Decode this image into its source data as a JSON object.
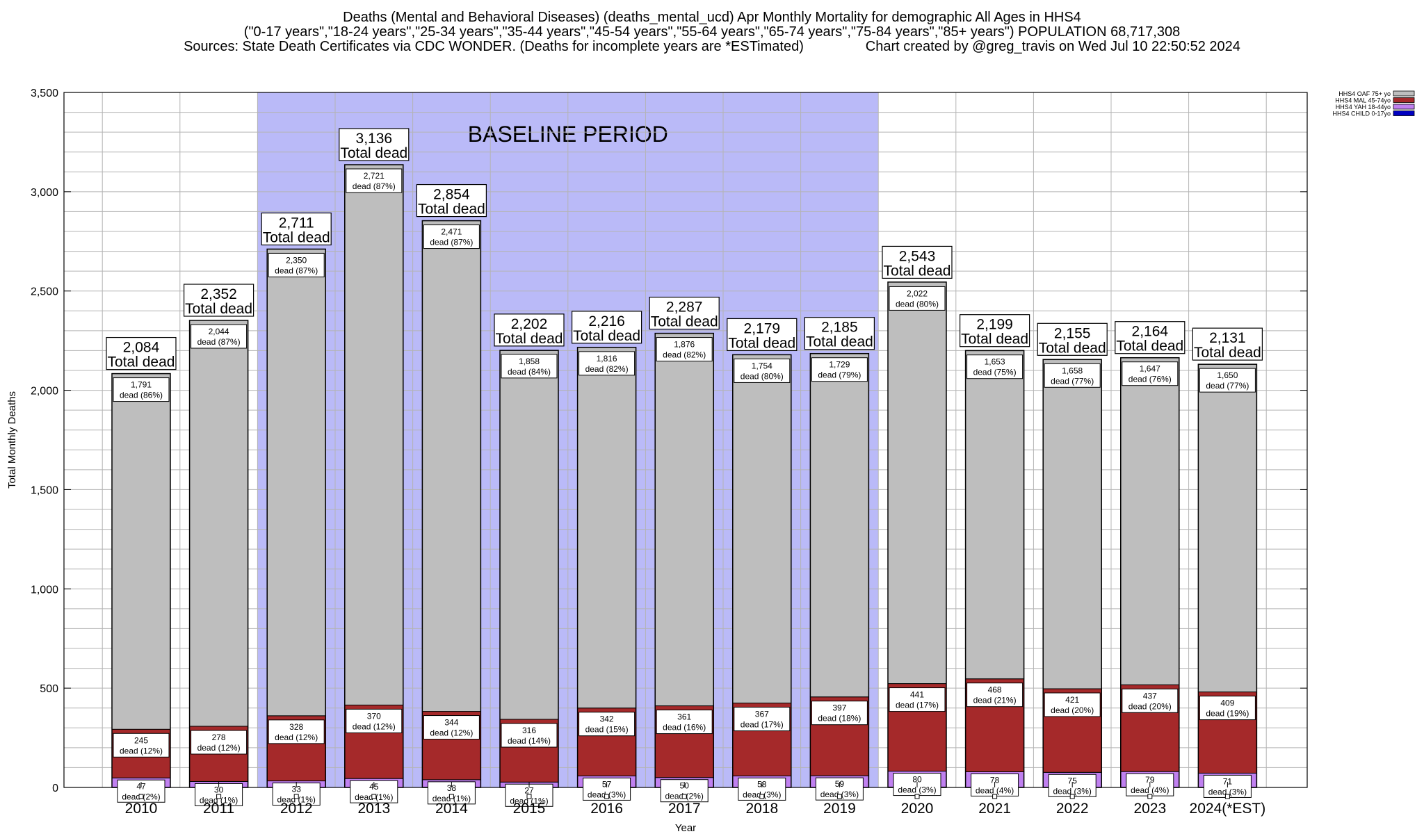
{
  "title": {
    "line1": "Deaths (Mental and Behavioral Diseases) (deaths_mental_ucd) Apr Monthly Mortality for demographic All Ages in HHS4",
    "line2": "(\"0-17 years\",\"18-24 years\",\"25-34 years\",\"35-44 years\",\"45-54 years\",\"55-64 years\",\"65-74 years\",\"75-84 years\",\"85+ years\") POPULATION 68,717,308",
    "line3": "Sources: State Death Certificates via CDC WONDER. (Deaths for incomplete years are *ESTimated)                Chart created by @greg_travis on Wed Jul 10 22:50:52 2024"
  },
  "colors": {
    "baseline_band": "#babaf8",
    "oaf": "#bebebe",
    "mal": "#a5292a",
    "yah": "#c080f0",
    "child": "#0000c0"
  },
  "chart_data": {
    "type": "bar",
    "stacked": true,
    "xlabel": "Year",
    "ylabel": "Total Monthly Deaths",
    "ylim": [
      0,
      3500
    ],
    "y_ticks": [
      0,
      500,
      1000,
      1500,
      2000,
      2500,
      3000,
      3500
    ],
    "y_tick_labels": [
      "0",
      "500",
      "1,000",
      "1,500",
      "2,000",
      "2,500",
      "3,000",
      "3,500"
    ],
    "grid": true,
    "legend_placement": "top-right",
    "baseline": {
      "label": "BASELINE PERIOD",
      "start": "2012",
      "end": "2019"
    },
    "categories": [
      "2010",
      "2011",
      "2012",
      "2013",
      "2014",
      "2015",
      "2016",
      "2017",
      "2018",
      "2019",
      "2020",
      "2021",
      "2022",
      "2023",
      "2024(*EST)"
    ],
    "totals": [
      2084,
      2352,
      2711,
      3136,
      2854,
      2202,
      2216,
      2287,
      2179,
      2185,
      2543,
      2199,
      2155,
      2164,
      2131
    ],
    "total_labels": [
      "2,084",
      "2,352",
      "2,711",
      "3,136",
      "2,854",
      "2,202",
      "2,216",
      "2,287",
      "2,179",
      "2,185",
      "2,543",
      "2,199",
      "2,155",
      "2,164",
      "2,131"
    ],
    "total_suffix": "Total dead",
    "series": [
      {
        "name": "HHS4 CHILD 0-17yo",
        "values": [
          1,
          0,
          0,
          0,
          1,
          0,
          1,
          0,
          0,
          0,
          2,
          1,
          1,
          1,
          1
        ],
        "labels": [
          "",
          "",
          "",
          "",
          "",
          "",
          "",
          "",
          "",
          "",
          "",
          "",
          "",
          "",
          ""
        ]
      },
      {
        "name": "HHS4 YAH 18-44yo",
        "values": [
          47,
          30,
          33,
          45,
          38,
          27,
          57,
          50,
          58,
          59,
          80,
          78,
          75,
          79,
          71
        ],
        "labels": [
          "47",
          "30",
          "33",
          "45",
          "38",
          "27",
          "57",
          "50",
          "58",
          "59",
          "80",
          "78",
          "75",
          "79",
          "71"
        ],
        "pct": [
          "(2%)",
          "(1%)",
          "(1%)",
          "(1%)",
          "(1%)",
          "(1%)",
          "(3%)",
          "(2%)",
          "(3%)",
          "(3%)",
          "(3%)",
          "(4%)",
          "(3%)",
          "(4%)",
          "(3%)"
        ]
      },
      {
        "name": "HHS4 MAL 45-74yo",
        "values": [
          245,
          278,
          328,
          370,
          344,
          316,
          342,
          361,
          367,
          397,
          441,
          468,
          421,
          437,
          409
        ],
        "labels": [
          "245",
          "278",
          "328",
          "370",
          "344",
          "316",
          "342",
          "361",
          "367",
          "397",
          "441",
          "468",
          "421",
          "437",
          "409"
        ],
        "pct": [
          "(12%)",
          "(12%)",
          "(12%)",
          "(12%)",
          "(12%)",
          "(14%)",
          "(15%)",
          "(16%)",
          "(17%)",
          "(18%)",
          "(17%)",
          "(21%)",
          "(20%)",
          "(20%)",
          "(19%)"
        ]
      },
      {
        "name": "HHS4 OAF 75+ yo",
        "values": [
          1791,
          2044,
          2350,
          2721,
          2471,
          1858,
          1816,
          1876,
          1754,
          1729,
          2022,
          1653,
          1658,
          1647,
          1650
        ],
        "labels": [
          "1,791",
          "2,044",
          "2,350",
          "2,721",
          "2,471",
          "1,858",
          "1,816",
          "1,876",
          "1,754",
          "1,729",
          "2,022",
          "1,653",
          "1,658",
          "1,647",
          "1,650"
        ],
        "pct": [
          "(86%)",
          "(87%)",
          "(87%)",
          "(87%)",
          "(87%)",
          "(84%)",
          "(82%)",
          "(82%)",
          "(80%)",
          "(79%)",
          "(80%)",
          "(75%)",
          "(77%)",
          "(76%)",
          "(77%)"
        ]
      }
    ],
    "dead_word": "dead",
    "legend": [
      "HHS4 OAF 75+ yo",
      "HHS4 MAL 45-74yo",
      "HHS4 YAH 18-44yo",
      "HHS4 CHILD 0-17yo"
    ]
  }
}
